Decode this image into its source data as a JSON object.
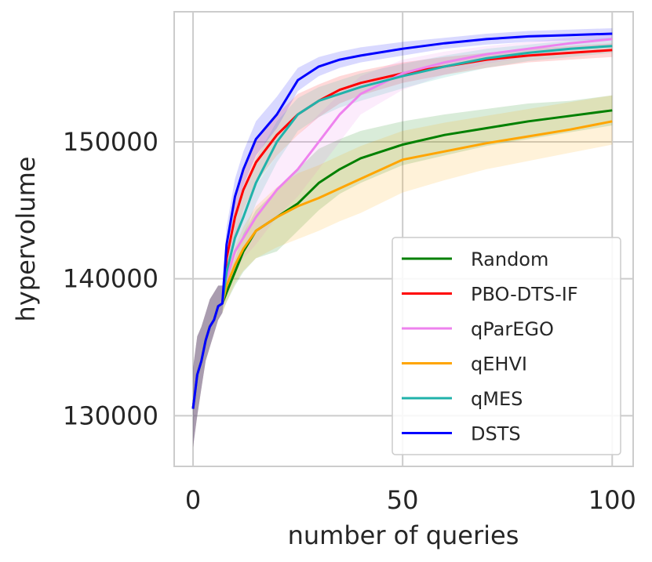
{
  "chart_data": {
    "type": "line",
    "title": "",
    "xlabel": "number of queries",
    "ylabel": "hypervolume",
    "xlim": [
      -4.5,
      105
    ],
    "ylim": [
      126300,
      159500
    ],
    "xticks": [
      0,
      50,
      100
    ],
    "xtick_labels": [
      "0",
      "50",
      "100"
    ],
    "yticks": [
      130000,
      140000,
      150000
    ],
    "ytick_labels": [
      "130000",
      "140000",
      "150000"
    ],
    "grid": true,
    "legend_position": "lower-right",
    "series": [
      {
        "name": "Random",
        "color": "#008000",
        "x": [
          0,
          1,
          2,
          3,
          4,
          5,
          6,
          7,
          8,
          10,
          12,
          15,
          20,
          25,
          30,
          35,
          40,
          50,
          60,
          70,
          80,
          90,
          100
        ],
        "y": [
          130500,
          133000,
          134000,
          135500,
          136500,
          137000,
          138000,
          138200,
          139000,
          140500,
          142000,
          143500,
          144500,
          145500,
          147000,
          148000,
          148800,
          149800,
          150500,
          151000,
          151500,
          151900,
          152300
        ],
        "lower": [
          127700,
          130000,
          132000,
          134000,
          135000,
          136000,
          137000,
          137500,
          138300,
          139500,
          140500,
          141500,
          142000,
          143500,
          145000,
          146200,
          147000,
          148300,
          149000,
          149700,
          150200,
          150700,
          151200
        ],
        "upper": [
          133500,
          135800,
          136500,
          137500,
          138500,
          139000,
          139500,
          139500,
          140000,
          141500,
          143300,
          145000,
          146500,
          148000,
          149500,
          150200,
          150800,
          151500,
          152000,
          152400,
          152800,
          153000,
          153400
        ]
      },
      {
        "name": "PBO-DTS-IF",
        "color": "#ff0000",
        "x": [
          0,
          1,
          2,
          3,
          4,
          5,
          6,
          7,
          8,
          10,
          12,
          15,
          20,
          25,
          30,
          35,
          40,
          50,
          60,
          70,
          80,
          90,
          100
        ],
        "y": [
          130500,
          133000,
          134000,
          135500,
          136500,
          137000,
          138000,
          138200,
          141500,
          144500,
          146500,
          148500,
          150500,
          152000,
          153000,
          153800,
          154300,
          155000,
          155500,
          156000,
          156300,
          156500,
          156700
        ],
        "lower": [
          127700,
          130000,
          132000,
          134000,
          135000,
          136000,
          137000,
          137500,
          140000,
          143000,
          145000,
          147000,
          149000,
          150500,
          151800,
          152800,
          153400,
          154300,
          154900,
          155400,
          155800,
          156000,
          156200
        ],
        "upper": [
          133500,
          135800,
          136500,
          137500,
          138500,
          139000,
          139500,
          139500,
          142800,
          146000,
          148000,
          150000,
          152000,
          153500,
          154200,
          154800,
          155200,
          155800,
          156200,
          156500,
          156800,
          157000,
          157200
        ]
      },
      {
        "name": "qParEGO",
        "color": "#ee82ee",
        "x": [
          0,
          1,
          2,
          3,
          4,
          5,
          6,
          7,
          8,
          10,
          12,
          15,
          20,
          25,
          30,
          35,
          40,
          50,
          60,
          70,
          80,
          90,
          100
        ],
        "y": [
          130500,
          133000,
          134000,
          135500,
          136500,
          137000,
          138000,
          138200,
          140000,
          142000,
          143000,
          144500,
          146500,
          148000,
          150000,
          152000,
          153500,
          155000,
          155800,
          156400,
          156800,
          157200,
          157500
        ],
        "lower": [
          127700,
          130000,
          132000,
          134000,
          135000,
          136000,
          137000,
          137500,
          139000,
          140500,
          141500,
          142500,
          144500,
          146000,
          148000,
          150000,
          152000,
          153800,
          154900,
          155700,
          156200,
          156700,
          157000
        ],
        "upper": [
          133500,
          135800,
          136500,
          137500,
          138500,
          139000,
          139500,
          139500,
          141500,
          143500,
          145000,
          146800,
          149000,
          150500,
          152000,
          153500,
          154800,
          156000,
          156600,
          157000,
          157300,
          157600,
          157900
        ]
      },
      {
        "name": "qEHVI",
        "color": "#ffa500",
        "x": [
          0,
          1,
          2,
          3,
          4,
          5,
          6,
          7,
          8,
          10,
          12,
          15,
          20,
          25,
          30,
          35,
          40,
          50,
          60,
          70,
          80,
          90,
          100
        ],
        "y": [
          130500,
          133000,
          134000,
          135500,
          136500,
          137000,
          138000,
          138200,
          139500,
          141000,
          142200,
          143500,
          144500,
          145300,
          145900,
          146600,
          147300,
          148700,
          149300,
          149900,
          150400,
          150900,
          151500
        ],
        "lower": [
          127700,
          130000,
          132000,
          134000,
          135000,
          136000,
          137000,
          137500,
          138300,
          139700,
          140600,
          141500,
          142300,
          142900,
          143500,
          144200,
          144800,
          146300,
          147200,
          148000,
          148600,
          149200,
          149800
        ],
        "upper": [
          133500,
          135800,
          136500,
          137500,
          138500,
          139000,
          139500,
          139500,
          140700,
          142300,
          143800,
          145300,
          146700,
          147700,
          148300,
          149000,
          149700,
          150800,
          151400,
          151900,
          152400,
          152900,
          153400
        ]
      },
      {
        "name": "qMES",
        "color": "#20b2aa",
        "x": [
          0,
          1,
          2,
          3,
          4,
          5,
          6,
          7,
          8,
          10,
          12,
          15,
          20,
          25,
          30,
          35,
          40,
          50,
          60,
          70,
          80,
          90,
          100
        ],
        "y": [
          130500,
          133000,
          134000,
          135500,
          136500,
          137000,
          138000,
          138200,
          140500,
          143000,
          144500,
          147000,
          150000,
          152000,
          153000,
          153500,
          154000,
          154800,
          155500,
          156100,
          156500,
          156800,
          157000
        ],
        "lower": [
          127700,
          130000,
          132000,
          134000,
          135000,
          136000,
          137000,
          137500,
          139500,
          141700,
          143000,
          145500,
          148500,
          150800,
          151800,
          152500,
          153000,
          153900,
          154700,
          155400,
          155900,
          156200,
          156500
        ],
        "upper": [
          133500,
          135800,
          136500,
          137500,
          138500,
          139000,
          139500,
          139500,
          141700,
          144500,
          146200,
          148800,
          151500,
          153200,
          154000,
          154500,
          155000,
          155700,
          156300,
          156800,
          157100,
          157400,
          157600
        ]
      },
      {
        "name": "DSTS",
        "color": "#0000ff",
        "x": [
          0,
          1,
          2,
          3,
          4,
          5,
          6,
          7,
          8,
          10,
          12,
          15,
          20,
          25,
          30,
          35,
          40,
          50,
          60,
          70,
          80,
          90,
          100
        ],
        "y": [
          130500,
          133000,
          134000,
          135500,
          136500,
          137000,
          138000,
          138200,
          142500,
          146000,
          148000,
          150200,
          152000,
          154500,
          155500,
          156000,
          156300,
          156800,
          157200,
          157500,
          157700,
          157800,
          157900
        ],
        "lower": [
          127700,
          130000,
          132000,
          134000,
          135000,
          136000,
          137000,
          137500,
          141300,
          144800,
          146800,
          149000,
          151000,
          153700,
          154800,
          155400,
          155800,
          156300,
          156800,
          157100,
          157300,
          157400,
          157500
        ],
        "upper": [
          133500,
          135800,
          136500,
          137500,
          138500,
          139000,
          139500,
          139500,
          143800,
          147300,
          149300,
          151500,
          153300,
          155400,
          156200,
          156600,
          156900,
          157300,
          157600,
          157900,
          158100,
          158200,
          158300
        ]
      }
    ]
  }
}
